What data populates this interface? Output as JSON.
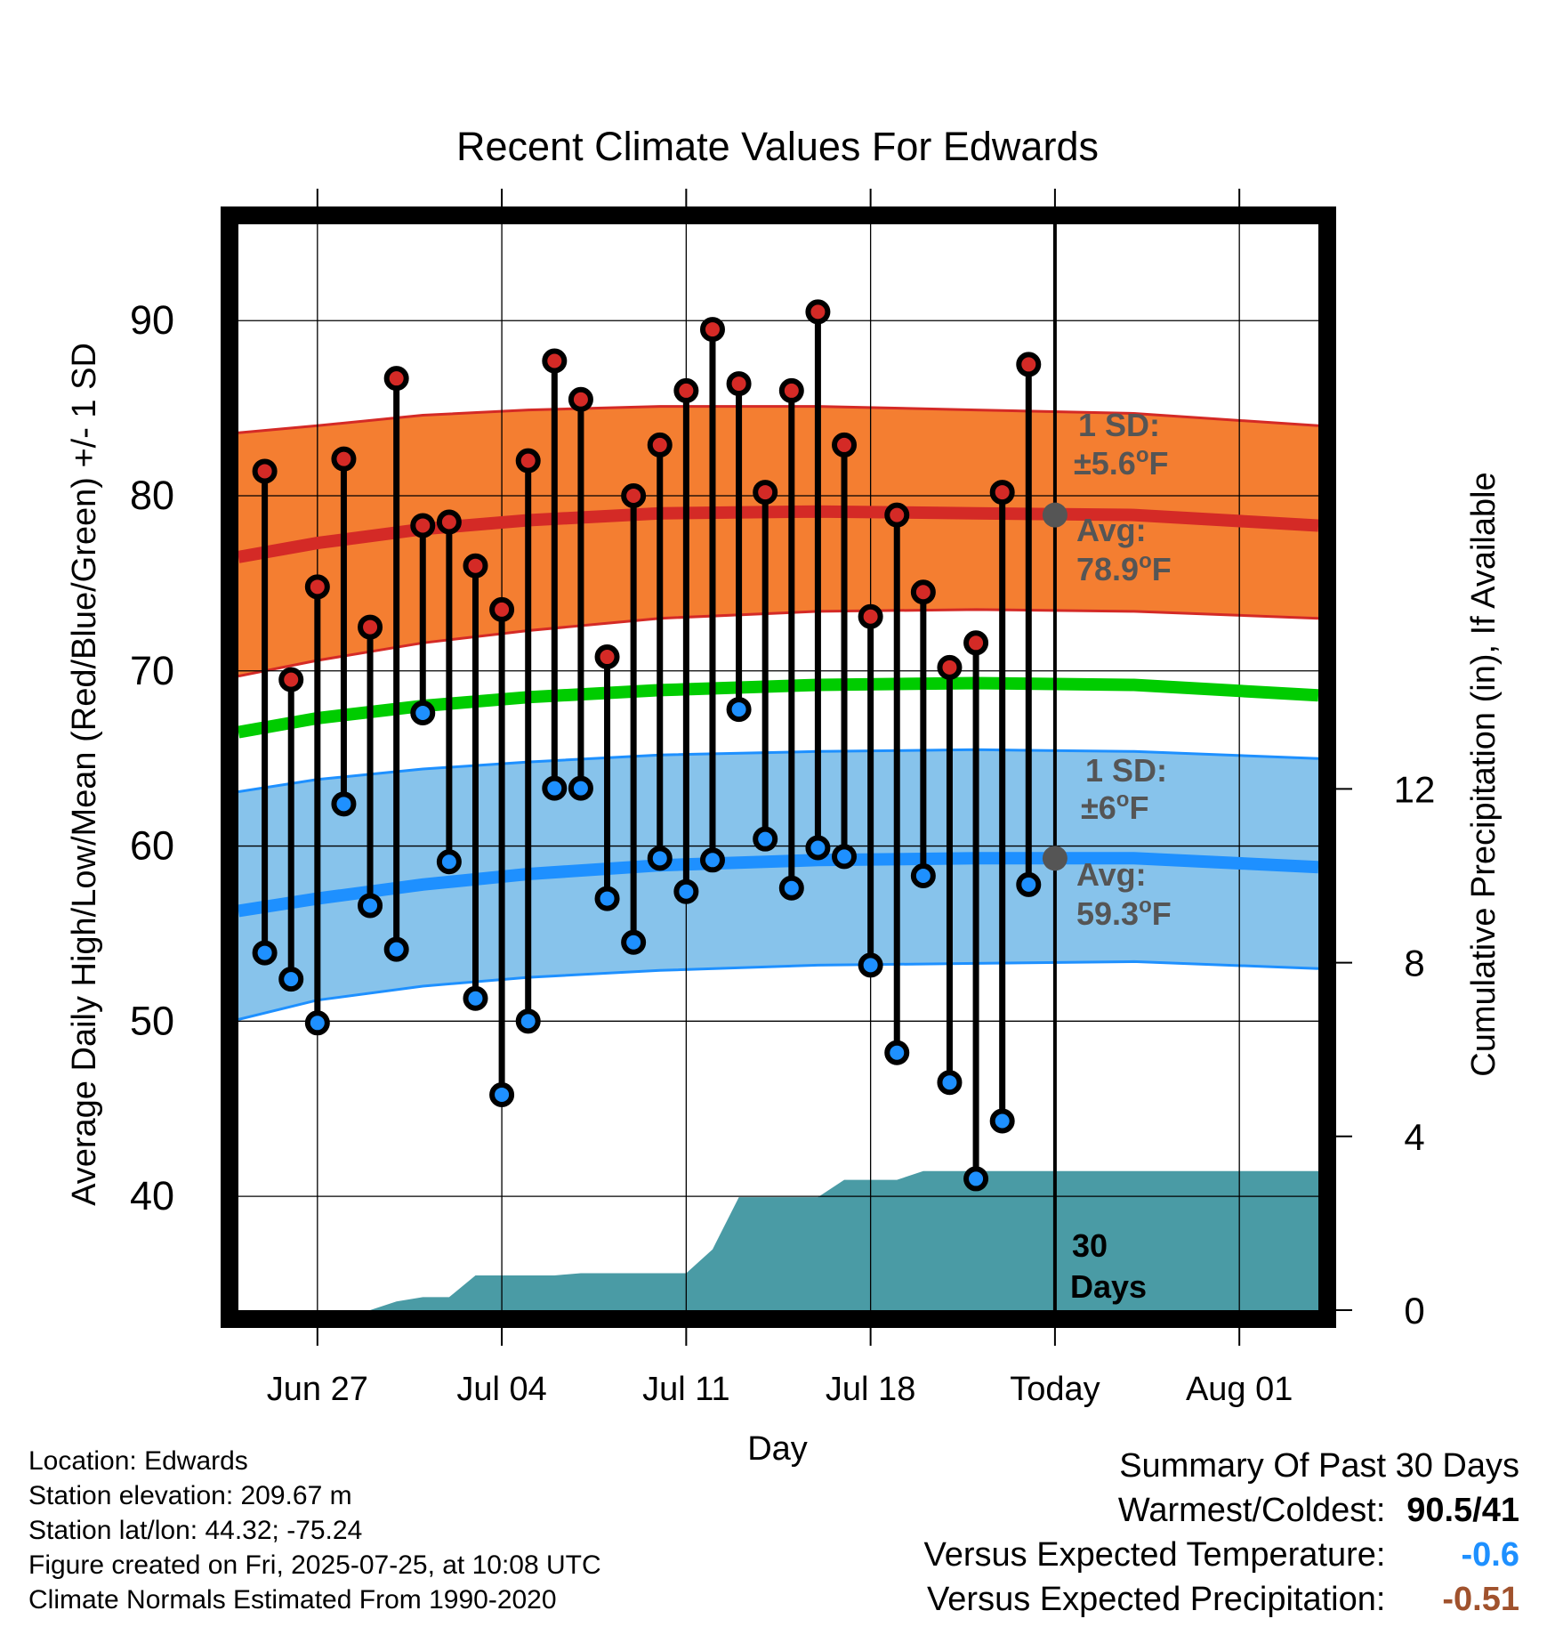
{
  "chart_data": {
    "type": "line",
    "title": "Recent Climate Values For Edwards",
    "xlabel": "Day",
    "ylabel": "Average Daily High/Low/Mean (Red/Blue/Green) +/- 1 SD",
    "y2label": "Cumulative Precipitation (in), If Available",
    "ylim": [
      33.5,
      95.5
    ],
    "y2lim": [
      0,
      25
    ],
    "yticks": [
      40,
      50,
      60,
      70,
      80,
      90
    ],
    "y2ticks": [
      0,
      4,
      8,
      12
    ],
    "xlim": [
      "2025-06-24",
      "2025-08-04"
    ],
    "xtick_labels": [
      {
        "date": "2025-06-27",
        "label": "Jun 27"
      },
      {
        "date": "2025-07-04",
        "label": "Jul 04"
      },
      {
        "date": "2025-07-11",
        "label": "Jul 11"
      },
      {
        "date": "2025-07-18",
        "label": "Jul 18"
      },
      {
        "date": "2025-07-25",
        "label": "Today"
      },
      {
        "date": "2025-08-01",
        "label": "Aug 01"
      }
    ],
    "grid": true,
    "today": "2025-07-25",
    "period_label": "30 Days",
    "colors": {
      "high_band": "#f47e31",
      "high_line": "#d42a26",
      "low_band": "#87c3eb",
      "low_line": "#1e90ff",
      "mean_line": "#00cc00",
      "precip": "#4a9ba5",
      "daily_bar": "#000000",
      "high_dot": "#d42a26",
      "low_dot": "#1e90ff",
      "avg_marker": "#555555",
      "annotation": "#555555"
    },
    "normal_dates": [
      "2025-06-24",
      "2025-06-27",
      "2025-07-01",
      "2025-07-05",
      "2025-07-10",
      "2025-07-16",
      "2025-07-22",
      "2025-07-28",
      "2025-08-04"
    ],
    "normal_high": [
      76.5,
      77.3,
      78.1,
      78.6,
      79.0,
      79.1,
      79.0,
      78.9,
      78.3
    ],
    "normal_high_sd_lower": [
      69.7,
      70.6,
      71.6,
      72.3,
      73.0,
      73.4,
      73.5,
      73.4,
      73.0
    ],
    "normal_high_sd_upper": [
      83.6,
      84.0,
      84.6,
      84.9,
      85.1,
      85.1,
      84.9,
      84.7,
      84.0
    ],
    "normal_mean": [
      66.5,
      67.3,
      68.0,
      68.5,
      68.9,
      69.2,
      69.3,
      69.2,
      68.6
    ],
    "normal_low": [
      56.3,
      57.0,
      57.8,
      58.4,
      58.9,
      59.2,
      59.3,
      59.3,
      58.8
    ],
    "normal_low_sd_lower": [
      50.1,
      51.2,
      52.0,
      52.5,
      52.9,
      53.2,
      53.3,
      53.4,
      53.0
    ],
    "normal_low_sd_upper": [
      63.1,
      63.8,
      64.4,
      64.8,
      65.2,
      65.4,
      65.5,
      65.4,
      65.0
    ],
    "daily": [
      {
        "date": "2025-06-25",
        "high": 81.4,
        "low": 53.9
      },
      {
        "date": "2025-06-26",
        "high": 69.5,
        "low": 52.4
      },
      {
        "date": "2025-06-27",
        "high": 74.8,
        "low": 49.9
      },
      {
        "date": "2025-06-28",
        "high": 82.1,
        "low": 62.4
      },
      {
        "date": "2025-06-29",
        "high": 72.5,
        "low": 56.6
      },
      {
        "date": "2025-06-30",
        "high": 86.7,
        "low": 54.1
      },
      {
        "date": "2025-07-01",
        "high": 78.3,
        "low": 67.6
      },
      {
        "date": "2025-07-02",
        "high": 78.5,
        "low": 59.1
      },
      {
        "date": "2025-07-03",
        "high": 76.0,
        "low": 51.3
      },
      {
        "date": "2025-07-04",
        "high": 73.5,
        "low": 45.8
      },
      {
        "date": "2025-07-05",
        "high": 82.0,
        "low": 50.0
      },
      {
        "date": "2025-07-06",
        "high": 87.7,
        "low": 63.3
      },
      {
        "date": "2025-07-07",
        "high": 85.5,
        "low": 63.3
      },
      {
        "date": "2025-07-08",
        "high": 70.8,
        "low": 57.0
      },
      {
        "date": "2025-07-09",
        "high": 80.0,
        "low": 54.5
      },
      {
        "date": "2025-07-10",
        "high": 82.9,
        "low": 59.3
      },
      {
        "date": "2025-07-11",
        "high": 86.0,
        "low": 57.4
      },
      {
        "date": "2025-07-12",
        "high": 89.5,
        "low": 59.2
      },
      {
        "date": "2025-07-13",
        "high": 86.4,
        "low": 67.8
      },
      {
        "date": "2025-07-14",
        "high": 80.2,
        "low": 60.4
      },
      {
        "date": "2025-07-15",
        "high": 86.0,
        "low": 57.6
      },
      {
        "date": "2025-07-16",
        "high": 90.5,
        "low": 59.9
      },
      {
        "date": "2025-07-17",
        "high": 82.9,
        "low": 59.4
      },
      {
        "date": "2025-07-18",
        "high": 73.1,
        "low": 53.2
      },
      {
        "date": "2025-07-19",
        "high": 78.9,
        "low": 48.2
      },
      {
        "date": "2025-07-20",
        "high": 74.5,
        "low": 58.3
      },
      {
        "date": "2025-07-21",
        "high": 70.2,
        "low": 46.5
      },
      {
        "date": "2025-07-22",
        "high": 71.6,
        "low": 41.0
      },
      {
        "date": "2025-07-23",
        "high": 80.2,
        "low": 44.3
      },
      {
        "date": "2025-07-24",
        "high": 87.5,
        "low": 57.8
      }
    ],
    "precip_cumulative": [
      {
        "date": "2025-06-24",
        "value": 0.0
      },
      {
        "date": "2025-06-26",
        "value": 0.0
      },
      {
        "date": "2025-06-27",
        "value": 0.0
      },
      {
        "date": "2025-06-28",
        "value": 0.0
      },
      {
        "date": "2025-06-29",
        "value": 0.0
      },
      {
        "date": "2025-06-30",
        "value": 0.2
      },
      {
        "date": "2025-07-01",
        "value": 0.3
      },
      {
        "date": "2025-07-02",
        "value": 0.3
      },
      {
        "date": "2025-07-03",
        "value": 0.8
      },
      {
        "date": "2025-07-04",
        "value": 0.8
      },
      {
        "date": "2025-07-06",
        "value": 0.8
      },
      {
        "date": "2025-07-07",
        "value": 0.85
      },
      {
        "date": "2025-07-10",
        "value": 0.85
      },
      {
        "date": "2025-07-11",
        "value": 0.85
      },
      {
        "date": "2025-07-12",
        "value": 1.4
      },
      {
        "date": "2025-07-13",
        "value": 2.6
      },
      {
        "date": "2025-07-15",
        "value": 2.6
      },
      {
        "date": "2025-07-16",
        "value": 2.6
      },
      {
        "date": "2025-07-17",
        "value": 3.0
      },
      {
        "date": "2025-07-18",
        "value": 3.0
      },
      {
        "date": "2025-07-19",
        "value": 3.0
      },
      {
        "date": "2025-07-20",
        "value": 3.2
      },
      {
        "date": "2025-07-25",
        "value": 3.2
      },
      {
        "date": "2025-08-04",
        "value": 3.2
      }
    ],
    "annotations": {
      "high_sd_label": "1 SD:",
      "high_sd_value": "±5.6",
      "high_avg_label": "Avg:",
      "high_avg_value": "78.9",
      "high_avg_temp": 78.9,
      "low_sd_label": "1 SD:",
      "low_sd_value": "±6",
      "low_avg_label": "Avg:",
      "low_avg_value": "59.3",
      "low_avg_temp": 59.3,
      "degree_symbol": "o",
      "unit": "F"
    }
  },
  "footer": {
    "location": "Location: Edwards",
    "elevation": "Station elevation: 209.67 m",
    "latlon": "Station lat/lon: 44.32; -75.24",
    "created": "Figure created on Fri, 2025-07-25, at 10:08 UTC",
    "normals": "Climate Normals Estimated From 1990-2020"
  },
  "summary": {
    "title": "Summary Of Past 30 Days",
    "warmest_coldest_label": "Warmest/Coldest:",
    "warmest_coldest_value": "90.5/41",
    "temp_label": "Versus Expected Temperature:",
    "temp_value": "-0.6",
    "temp_color": "#1e90ff",
    "precip_label": "Versus Expected Precipitation:",
    "precip_value": "-0.51",
    "precip_color": "#a0522d"
  }
}
